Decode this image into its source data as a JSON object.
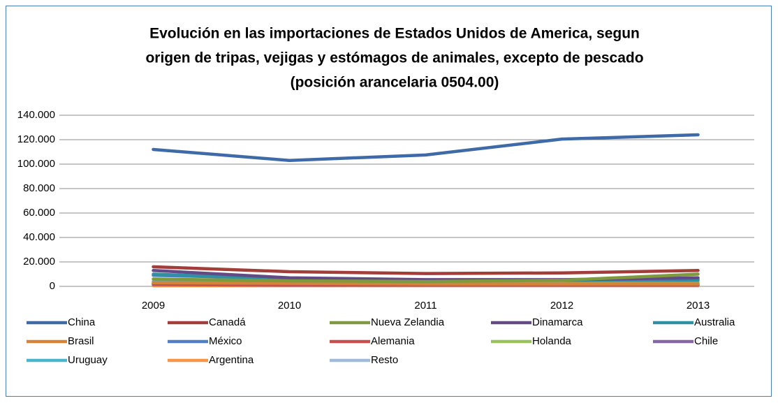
{
  "chart_data": {
    "type": "line",
    "title": [
      "Evolución en las importaciones de Estados Unidos de America, segun",
      "origen  de tripas, vejigas y estómagos de animales, excepto de pescado",
      "(posición arancelaria 0504.00)"
    ],
    "categories": [
      "2009",
      "2010",
      "2011",
      "2012",
      "2013"
    ],
    "series": [
      {
        "name": "China",
        "color": "#3f6aa8",
        "values": [
          112000,
          103000,
          107500,
          120500,
          124000
        ]
      },
      {
        "name": "Canadá",
        "color": "#a33d3a",
        "values": [
          16000,
          12000,
          10500,
          11000,
          13000
        ]
      },
      {
        "name": "Nueva Zelandia",
        "color": "#7f9a3e",
        "values": [
          6000,
          4500,
          4000,
          5000,
          10000
        ]
      },
      {
        "name": "Dinamarca",
        "color": "#634a87",
        "values": [
          13000,
          7000,
          5500,
          5500,
          7000
        ]
      },
      {
        "name": "Australia",
        "color": "#2f8fa3",
        "values": [
          10000,
          6000,
          5000,
          5000,
          5000
        ]
      },
      {
        "name": "Brasil",
        "color": "#d3833a",
        "values": [
          3000,
          2500,
          2000,
          2000,
          2000
        ]
      },
      {
        "name": "México",
        "color": "#4f7fc4",
        "values": [
          9000,
          6500,
          5000,
          5000,
          6000
        ]
      },
      {
        "name": "Alemania",
        "color": "#c84f4b",
        "values": [
          2000,
          1500,
          1500,
          1500,
          1500
        ]
      },
      {
        "name": "Holanda",
        "color": "#9bc15a",
        "values": [
          2500,
          2000,
          2000,
          2000,
          3000
        ]
      },
      {
        "name": "Chile",
        "color": "#8466a6",
        "values": [
          1500,
          1000,
          1000,
          1000,
          1000
        ]
      },
      {
        "name": "Uruguay",
        "color": "#4bb5cc",
        "values": [
          3500,
          3000,
          3000,
          3000,
          3000
        ]
      },
      {
        "name": "Argentina",
        "color": "#f79646",
        "values": [
          500,
          500,
          500,
          500,
          500
        ]
      },
      {
        "name": "Resto",
        "color": "#a3bbdb",
        "values": [
          4000,
          3500,
          3500,
          3500,
          4000
        ]
      }
    ],
    "ylim": [
      0,
      140000
    ],
    "yticks": [
      0,
      {
        "value": 20000,
        "label": "20.000"
      },
      {
        "value": 40000,
        "label": "40.000"
      },
      {
        "value": 60000,
        "label": "60.000"
      },
      {
        "value": 80000,
        "label": "80.000"
      },
      {
        "value": 100000,
        "label": "100.000"
      },
      {
        "value": 120000,
        "label": "120.000"
      },
      {
        "value": 140000,
        "label": "140.000"
      }
    ],
    "grid": true
  }
}
